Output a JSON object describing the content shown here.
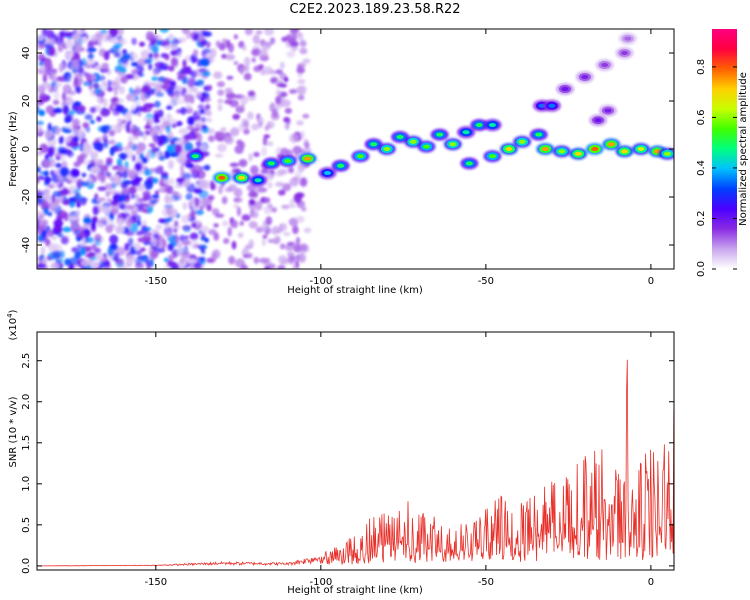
{
  "title": "C2E2.2023.189.23.58.R22",
  "colors": {
    "snr_line": "#e8302a",
    "axis": "#000000"
  },
  "chart_data": [
    {
      "type": "heatmap",
      "xlabel": "Height of straight line (km)",
      "ylabel": "Frequency (Hz)",
      "xlim": [
        -186,
        7
      ],
      "ylim": [
        -50,
        50
      ],
      "xticks": [
        -150,
        -100,
        -50,
        0
      ],
      "yticks": [
        -40,
        -20,
        0,
        20,
        40
      ],
      "colorbar": {
        "label": "Normalized spectral amplitude",
        "range": [
          0,
          0.95
        ],
        "ticks": [
          0.0,
          0.2,
          0.4,
          0.6,
          0.8
        ],
        "colormap": [
          "#ffffff",
          "#c9a6ee",
          "#8a2be2",
          "#4b00ff",
          "#0040ff",
          "#00c0ff",
          "#00ff80",
          "#40ff00",
          "#c8ff00",
          "#ffd000",
          "#ff6000",
          "#ff0040",
          "#ff0080"
        ]
      },
      "ridge": [
        {
          "x": -138,
          "y": -3,
          "a": 0.5
        },
        {
          "x": -130,
          "y": -12,
          "a": 0.8
        },
        {
          "x": -124,
          "y": -12,
          "a": 0.7
        },
        {
          "x": -119,
          "y": -13,
          "a": 0.45
        },
        {
          "x": -115,
          "y": -6,
          "a": 0.5
        },
        {
          "x": -110,
          "y": -5,
          "a": 0.55
        },
        {
          "x": -104,
          "y": -4,
          "a": 0.75
        },
        {
          "x": -98,
          "y": -10,
          "a": 0.4
        },
        {
          "x": -94,
          "y": -7,
          "a": 0.5
        },
        {
          "x": -88,
          "y": -3,
          "a": 0.55
        },
        {
          "x": -84,
          "y": 2,
          "a": 0.5
        },
        {
          "x": -80,
          "y": 0,
          "a": 0.6
        },
        {
          "x": -76,
          "y": 5,
          "a": 0.5
        },
        {
          "x": -72,
          "y": 3,
          "a": 0.6
        },
        {
          "x": -68,
          "y": 1,
          "a": 0.55
        },
        {
          "x": -64,
          "y": 6,
          "a": 0.5
        },
        {
          "x": -60,
          "y": 2,
          "a": 0.6
        },
        {
          "x": -56,
          "y": 7,
          "a": 0.45
        },
        {
          "x": -52,
          "y": 10,
          "a": 0.5
        },
        {
          "x": -48,
          "y": 10,
          "a": 0.45
        },
        {
          "x": -55,
          "y": -6,
          "a": 0.5
        },
        {
          "x": -48,
          "y": -3,
          "a": 0.55
        },
        {
          "x": -43,
          "y": 0,
          "a": 0.7
        },
        {
          "x": -39,
          "y": 3,
          "a": 0.6
        },
        {
          "x": -34,
          "y": 6,
          "a": 0.5
        },
        {
          "x": -32,
          "y": 0,
          "a": 0.75
        },
        {
          "x": -27,
          "y": -1,
          "a": 0.6
        },
        {
          "x": -22,
          "y": -2,
          "a": 0.7
        },
        {
          "x": -17,
          "y": 0,
          "a": 0.8
        },
        {
          "x": -12,
          "y": 2,
          "a": 0.75
        },
        {
          "x": -8,
          "y": -1,
          "a": 0.7
        },
        {
          "x": -3,
          "y": 0,
          "a": 0.65
        },
        {
          "x": 2,
          "y": -1,
          "a": 0.75
        },
        {
          "x": 5,
          "y": -2,
          "a": 0.6
        }
      ],
      "upper_branch": [
        {
          "x": -33,
          "y": 18,
          "a": 0.35
        },
        {
          "x": -30,
          "y": 18,
          "a": 0.35
        },
        {
          "x": -26,
          "y": 25,
          "a": 0.2
        },
        {
          "x": -20,
          "y": 30,
          "a": 0.18
        },
        {
          "x": -14,
          "y": 35,
          "a": 0.15
        },
        {
          "x": -8,
          "y": 40,
          "a": 0.15
        },
        {
          "x": -7,
          "y": 46,
          "a": 0.12
        },
        {
          "x": -16,
          "y": 12,
          "a": 0.2
        },
        {
          "x": -13,
          "y": 16,
          "a": 0.18
        }
      ]
    },
    {
      "type": "line",
      "xlabel": "Height of straight line (km)",
      "ylabel": "SNR (10 * v/v)",
      "yunit": "(x10",
      "yunit_exp": "4",
      "yunit_close": ")",
      "xlim": [
        -186,
        7
      ],
      "ylim": [
        -0.05,
        2.85
      ],
      "xticks": [
        -150,
        -100,
        -50,
        0
      ],
      "yticks": [
        "0.0",
        "0.5",
        "1.0",
        "1.5",
        "2.0",
        "2.5"
      ],
      "envelope": [
        {
          "x": -186,
          "y": 0.0
        },
        {
          "x": -150,
          "y": 0.01
        },
        {
          "x": -130,
          "y": 0.05
        },
        {
          "x": -110,
          "y": 0.04
        },
        {
          "x": -100,
          "y": 0.15
        },
        {
          "x": -90,
          "y": 0.38
        },
        {
          "x": -82,
          "y": 0.75
        },
        {
          "x": -75,
          "y": 0.9
        },
        {
          "x": -70,
          "y": 0.68
        },
        {
          "x": -60,
          "y": 0.5
        },
        {
          "x": -52,
          "y": 0.62
        },
        {
          "x": -45,
          "y": 0.9
        },
        {
          "x": -38,
          "y": 1.0
        },
        {
          "x": -30,
          "y": 1.05
        },
        {
          "x": -22,
          "y": 1.4
        },
        {
          "x": -15,
          "y": 1.5
        },
        {
          "x": -8,
          "y": 1.05
        },
        {
          "x": -7,
          "y": 2.75
        },
        {
          "x": -6,
          "y": 0.9
        },
        {
          "x": -2,
          "y": 1.4
        },
        {
          "x": 3,
          "y": 1.45
        },
        {
          "x": 6,
          "y": 1.9
        }
      ]
    }
  ]
}
